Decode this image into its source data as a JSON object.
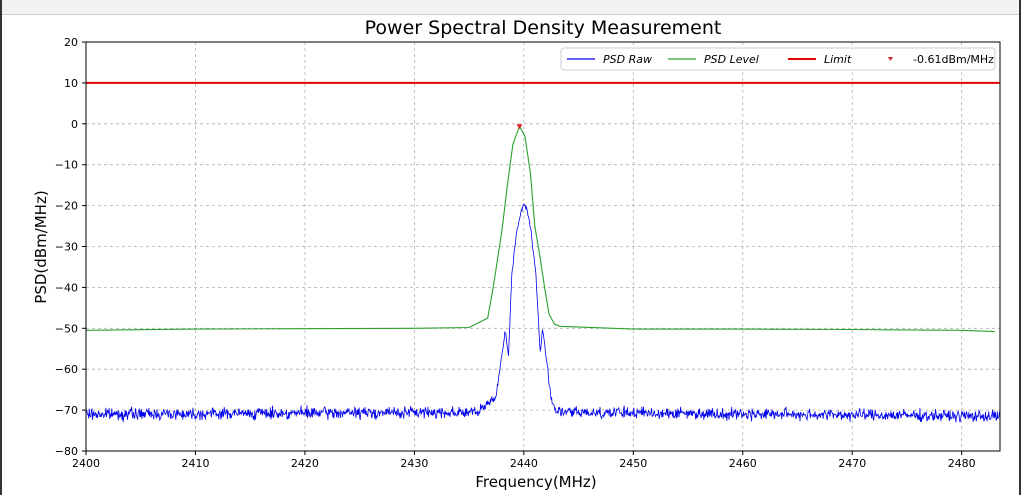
{
  "chart_data": {
    "type": "line",
    "title": "Power Spectral Density Measurement",
    "xlabel": "Frequency(MHz)",
    "ylabel": "PSD(dBm/MHz)",
    "xlim": [
      2400,
      2483.5
    ],
    "ylim": [
      -80,
      20
    ],
    "xticks": [
      2400,
      2410,
      2420,
      2430,
      2440,
      2450,
      2460,
      2470,
      2480
    ],
    "yticks": [
      20,
      10,
      0,
      -10,
      -20,
      -30,
      -40,
      -50,
      -60,
      -70,
      -80
    ],
    "grid": true,
    "legend_position": "top-right",
    "series": [
      {
        "name": "PSD Raw",
        "style": "noisy-line",
        "color": "#0000ee",
        "x": [
          2400,
          2436,
          2437.5,
          2438.3,
          2438.6,
          2438.9,
          2439.3,
          2439.7,
          2440.0,
          2440.3,
          2440.7,
          2441.1,
          2441.5,
          2441.7,
          2442.0,
          2442.5,
          2443.0,
          2483.5
        ],
        "y": [
          -71,
          -70.5,
          -66,
          -50.5,
          -57,
          -37,
          -27,
          -22,
          -19.5,
          -21,
          -27,
          -37,
          -56,
          -50.5,
          -56,
          -67,
          -70.5,
          -71.5
        ]
      },
      {
        "name": "PSD Level",
        "style": "line",
        "color": "#2ca02c",
        "x": [
          2400,
          2410,
          2420,
          2430,
          2435,
          2436.7,
          2437.2,
          2437.6,
          2438.0,
          2438.5,
          2439.0,
          2439.6,
          2440.1,
          2440.6,
          2441.0,
          2441.5,
          2441.9,
          2442.3,
          2442.8,
          2443.3,
          2450,
          2460,
          2470,
          2480,
          2483
        ],
        "y": [
          -50.5,
          -50.2,
          -50.1,
          -50,
          -49.8,
          -47.5,
          -40,
          -33,
          -26,
          -15,
          -5,
          -0.6,
          -3,
          -12,
          -25,
          -33,
          -40,
          -46.5,
          -49,
          -49.5,
          -50.2,
          -50.2,
          -50.3,
          -50.5,
          -50.8
        ]
      },
      {
        "name": "Limit",
        "style": "hline",
        "color": "#e00000",
        "y": 10
      },
      {
        "name": "-0.61dBm/MHz",
        "style": "marker",
        "color": "#d62728",
        "x": 2439.6,
        "y": -0.61
      }
    ]
  },
  "icons": {
    "marker": "down-triangle-marker-icon"
  }
}
